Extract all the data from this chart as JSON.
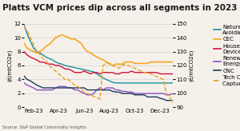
{
  "title": "Platts VCM prices dip across all segments in 2023",
  "source": "Source: S&P Global Commodity Insights",
  "ylabel_left": "(é/mtCO2e)",
  "ylabel_right": "(é/mtCO2e)",
  "ylim_left": [
    0,
    12
  ],
  "ylim_right": [
    90,
    150
  ],
  "xtick_labels": [
    "Feb-23",
    "Apr-23",
    "Jun-23",
    "Aug-23",
    "Oct-23",
    "Dec-23"
  ],
  "series": {
    "Nature-Based Avoidance": {
      "color": "#1a8fa0",
      "axis": "left",
      "values": [
        11.8,
        10.5,
        9.5,
        8.5,
        8.0,
        7.8,
        7.5,
        7.2,
        7.0,
        6.8,
        6.5,
        6.3,
        6.2,
        6.0,
        5.9,
        5.8,
        5.7,
        5.6,
        5.5,
        5.4,
        5.3,
        5.2,
        5.1,
        4.8,
        4.5,
        4.2,
        4.0,
        3.8,
        3.6,
        3.5,
        3.5,
        3.5,
        3.5,
        3.5,
        3.5,
        3.5,
        3.5,
        3.5,
        3.5,
        3.5,
        3.5,
        3.5,
        3.5,
        3.5,
        3.5,
        3.5,
        3.5,
        3.5
      ]
    },
    "CEC": {
      "color": "#f5a623",
      "axis": "left",
      "values": [
        9.2,
        8.5,
        8.2,
        8.0,
        7.8,
        8.0,
        8.3,
        8.8,
        9.0,
        9.5,
        10.0,
        10.2,
        10.4,
        10.2,
        10.0,
        9.8,
        9.8,
        9.5,
        9.2,
        8.5,
        8.0,
        7.8,
        7.5,
        7.2,
        7.0,
        6.8,
        6.5,
        6.3,
        6.0,
        6.2,
        6.2,
        6.2,
        6.5,
        6.5,
        6.5,
        6.3,
        6.3,
        6.3,
        6.3,
        6.3,
        6.5,
        6.5,
        6.5,
        6.5,
        6.5,
        6.5,
        6.5,
        6.5
      ]
    },
    "Household Devices": {
      "color": "#d0103a",
      "axis": "left",
      "values": [
        8.0,
        7.5,
        7.2,
        7.0,
        6.8,
        6.5,
        6.5,
        6.3,
        6.2,
        6.2,
        6.0,
        6.0,
        5.8,
        5.5,
        5.5,
        5.3,
        5.0,
        5.0,
        5.0,
        5.2,
        5.0,
        4.8,
        5.0,
        5.0,
        4.8,
        5.0,
        5.0,
        5.0,
        5.0,
        4.8,
        4.8,
        5.0,
        5.0,
        5.0,
        5.2,
        5.0,
        5.0,
        5.0,
        5.0,
        5.0,
        5.0,
        5.0,
        5.0,
        4.8,
        4.8,
        4.8,
        4.8,
        4.8
      ]
    },
    "Renewable Energy": {
      "color": "#8b4fc8",
      "axis": "left",
      "values": [
        3.5,
        3.2,
        3.0,
        2.8,
        2.5,
        2.5,
        2.5,
        2.5,
        2.5,
        2.5,
        2.8,
        3.0,
        3.0,
        3.0,
        2.8,
        2.8,
        2.5,
        2.5,
        2.2,
        2.0,
        1.8,
        1.8,
        2.0,
        2.5,
        2.8,
        2.5,
        2.8,
        2.8,
        2.8,
        2.5,
        2.5,
        2.3,
        2.3,
        2.2,
        2.2,
        2.0,
        2.0,
        2.0,
        2.0,
        2.0,
        2.0,
        2.0,
        2.0,
        2.0,
        2.0,
        1.8,
        1.8,
        2.0
      ]
    },
    "CNC": {
      "color": "#1a3a5c",
      "axis": "left",
      "values": [
        4.5,
        4.0,
        3.8,
        3.5,
        3.2,
        3.0,
        2.8,
        2.8,
        2.8,
        2.8,
        2.8,
        2.8,
        2.8,
        2.8,
        2.8,
        2.8,
        2.8,
        2.8,
        2.8,
        2.8,
        2.5,
        2.5,
        2.5,
        2.5,
        2.5,
        2.5,
        2.5,
        2.5,
        2.3,
        2.2,
        2.2,
        2.0,
        2.0,
        2.0,
        2.0,
        1.8,
        1.8,
        1.8,
        1.8,
        1.5,
        1.5,
        1.5,
        1.5,
        1.3,
        1.2,
        1.0,
        1.0,
        1.0
      ]
    },
    "Tech Carbon Capture": {
      "color": "#e8a020",
      "axis": "right",
      "values": [
        148,
        145,
        140,
        135,
        130,
        128,
        125,
        123,
        120,
        118,
        116,
        114,
        112,
        110,
        110,
        108,
        106,
        105,
        103,
        101,
        100,
        99,
        98,
        97,
        96,
        120,
        122,
        121,
        120,
        119,
        118,
        120,
        121,
        120,
        119,
        118,
        117,
        116,
        115,
        115,
        114,
        113,
        112,
        111,
        110,
        100,
        98,
        93
      ]
    }
  },
  "n_points": 48,
  "background_color": "#f5f0ea",
  "grid_color": "#cccccc",
  "title_fontsize": 7.5,
  "axis_fontsize": 5,
  "tick_fontsize": 5,
  "legend_fontsize": 5
}
